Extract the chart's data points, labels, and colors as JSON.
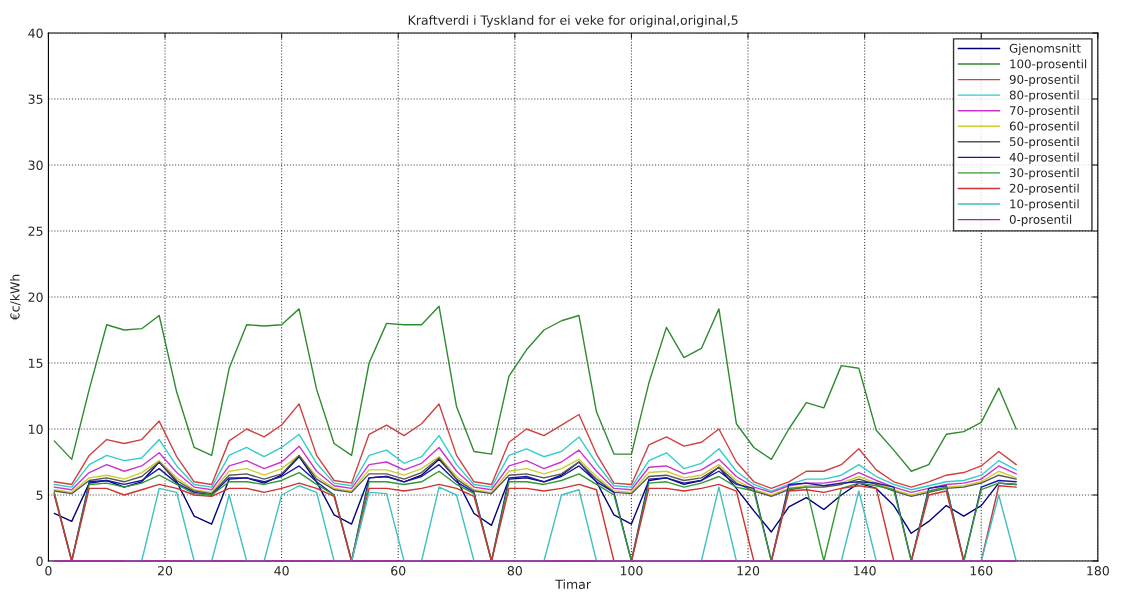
{
  "chart_data": {
    "type": "line",
    "title": "Kraftverdi i Tyskland for ei veke for original,original,5",
    "xlabel": "Timar",
    "ylabel": "€c/kWh",
    "x": [
      1,
      4,
      7,
      10,
      13,
      16,
      19,
      22,
      25,
      28,
      31,
      34,
      37,
      40,
      43,
      46,
      49,
      52,
      55,
      58,
      61,
      64,
      67,
      70,
      73,
      76,
      79,
      82,
      85,
      88,
      91,
      94,
      97,
      100,
      103,
      106,
      109,
      112,
      115,
      118,
      121,
      124,
      127,
      130,
      133,
      136,
      139,
      142,
      145,
      148,
      151,
      154,
      157,
      160,
      163,
      166
    ],
    "xlim": [
      0,
      180
    ],
    "xticks": [
      0,
      20,
      40,
      60,
      80,
      100,
      120,
      140,
      160,
      180
    ],
    "ylim": [
      0,
      40
    ],
    "yticks": [
      0,
      5,
      10,
      15,
      20,
      25,
      30,
      35,
      40
    ],
    "grid": true,
    "legend": "top right",
    "line_style": "solid",
    "marker": "none",
    "series": [
      {
        "name": "Gjenomsnitt",
        "color": "#00007f",
        "values": [
          3.6,
          3.0,
          5.9,
          6.1,
          5.6,
          6.0,
          7.5,
          6.0,
          3.4,
          2.8,
          6.2,
          6.3,
          5.9,
          6.5,
          7.9,
          6.0,
          3.5,
          2.8,
          6.3,
          6.4,
          6.0,
          6.5,
          7.7,
          6.2,
          3.6,
          2.7,
          6.2,
          6.3,
          6.0,
          6.5,
          7.5,
          6.0,
          3.5,
          2.8,
          6.1,
          6.3,
          5.8,
          6.1,
          7.1,
          5.5,
          3.8,
          2.2,
          4.1,
          4.8,
          3.9,
          5.0,
          5.9,
          5.5,
          4.2,
          2.1,
          3.0,
          4.2,
          3.4,
          4.2,
          5.9,
          5.8
        ]
      },
      {
        "name": "100-prosentil",
        "color": "#2e8b2e",
        "values": [
          9.1,
          7.7,
          13.0,
          17.9,
          17.5,
          17.6,
          18.6,
          12.8,
          8.6,
          8.0,
          14.6,
          17.9,
          17.8,
          17.9,
          19.1,
          13.0,
          8.9,
          8.0,
          15.0,
          18.0,
          17.9,
          17.9,
          19.3,
          11.7,
          8.3,
          8.1,
          14.0,
          16.0,
          17.5,
          18.2,
          18.6,
          11.3,
          8.1,
          8.1,
          13.5,
          17.7,
          15.4,
          16.1,
          19.1,
          10.4,
          8.6,
          7.7,
          10.0,
          12.0,
          11.6,
          14.8,
          14.6,
          9.9,
          8.4,
          6.8,
          7.3,
          9.6,
          9.8,
          10.5,
          13.1,
          10.0
        ]
      },
      {
        "name": "90-prosentil",
        "color": "#d04040",
        "values": [
          6.0,
          5.8,
          8.0,
          9.2,
          8.9,
          9.2,
          10.6,
          7.9,
          6.0,
          5.8,
          9.1,
          10.0,
          9.4,
          10.3,
          11.9,
          8.0,
          6.1,
          5.9,
          9.6,
          10.3,
          9.5,
          10.4,
          11.9,
          8.0,
          6.0,
          5.8,
          9.0,
          10.0,
          9.5,
          10.3,
          11.1,
          8.1,
          5.9,
          5.8,
          8.8,
          9.4,
          8.7,
          9.0,
          10.0,
          7.5,
          6.0,
          5.5,
          6.0,
          6.8,
          6.8,
          7.3,
          8.5,
          6.9,
          6.0,
          5.6,
          6.0,
          6.5,
          6.7,
          7.2,
          8.3,
          7.3
        ]
      },
      {
        "name": "80-prosentil",
        "color": "#33cccc",
        "values": [
          5.8,
          5.6,
          7.3,
          8.0,
          7.6,
          7.8,
          9.2,
          7.2,
          5.8,
          5.6,
          8.0,
          8.6,
          7.9,
          8.6,
          9.6,
          7.4,
          5.9,
          5.7,
          8.0,
          8.4,
          7.4,
          7.9,
          9.5,
          7.3,
          5.8,
          5.6,
          8.0,
          8.5,
          7.9,
          8.3,
          9.4,
          7.4,
          5.7,
          5.6,
          7.6,
          8.2,
          7.0,
          7.4,
          8.5,
          6.8,
          5.8,
          5.3,
          5.8,
          6.2,
          6.2,
          6.5,
          7.3,
          6.4,
          5.8,
          5.4,
          5.7,
          6.0,
          6.1,
          6.5,
          7.6,
          6.9
        ]
      },
      {
        "name": "70-prosentil",
        "color": "#cc33cc",
        "values": [
          5.6,
          5.4,
          6.7,
          7.3,
          6.8,
          7.2,
          8.2,
          6.7,
          5.6,
          5.4,
          7.2,
          7.6,
          7.0,
          7.5,
          8.7,
          6.8,
          5.7,
          5.5,
          7.3,
          7.5,
          6.9,
          7.4,
          8.6,
          6.8,
          5.6,
          5.4,
          7.2,
          7.6,
          7.0,
          7.5,
          8.4,
          6.8,
          5.5,
          5.4,
          7.1,
          7.2,
          6.6,
          6.9,
          7.7,
          6.4,
          5.6,
          5.2,
          5.7,
          5.9,
          5.9,
          6.1,
          6.7,
          6.1,
          5.6,
          5.2,
          5.5,
          5.8,
          5.9,
          6.2,
          7.2,
          6.6
        ]
      },
      {
        "name": "60-prosentil",
        "color": "#cccc33",
        "values": [
          5.4,
          5.2,
          6.3,
          6.5,
          6.2,
          6.7,
          7.6,
          6.3,
          5.4,
          5.2,
          6.8,
          7.0,
          6.5,
          7.0,
          8.0,
          6.4,
          5.5,
          5.3,
          6.9,
          6.9,
          6.5,
          7.0,
          7.9,
          6.4,
          5.4,
          5.2,
          6.8,
          7.0,
          6.6,
          7.0,
          7.7,
          6.4,
          5.3,
          5.2,
          6.7,
          6.8,
          6.3,
          6.5,
          7.3,
          6.1,
          5.4,
          5.0,
          5.5,
          5.7,
          5.7,
          5.9,
          6.4,
          5.9,
          5.4,
          5.0,
          5.3,
          5.6,
          5.7,
          6.0,
          6.8,
          6.3
        ]
      },
      {
        "name": "50-prosentil",
        "color": "#555555",
        "values": [
          5.3,
          5.1,
          6.1,
          6.3,
          6.0,
          6.4,
          7.5,
          6.1,
          5.3,
          5.1,
          6.5,
          6.6,
          6.2,
          6.6,
          8.0,
          6.2,
          5.4,
          5.2,
          6.6,
          6.6,
          6.2,
          6.7,
          7.8,
          6.2,
          5.3,
          5.1,
          6.5,
          6.6,
          6.3,
          6.6,
          7.5,
          6.2,
          5.2,
          5.1,
          6.4,
          6.5,
          6.1,
          6.3,
          7.1,
          5.9,
          5.3,
          4.9,
          5.4,
          5.6,
          5.6,
          5.8,
          6.2,
          5.8,
          5.3,
          4.9,
          5.2,
          5.5,
          5.6,
          5.9,
          6.5,
          6.2
        ]
      },
      {
        "name": "40-prosentil",
        "color": "#1a1aa6",
        "values": [
          5.1,
          0,
          6.0,
          6.1,
          5.8,
          6.1,
          7.0,
          5.9,
          5.2,
          5.0,
          6.3,
          6.3,
          6.0,
          6.4,
          7.2,
          6.0,
          5.0,
          0,
          6.3,
          6.4,
          6.0,
          6.4,
          7.3,
          6.0,
          5.2,
          0,
          6.3,
          6.4,
          6.0,
          6.4,
          7.2,
          6.0,
          5.2,
          0,
          6.2,
          6.3,
          5.9,
          6.1,
          6.8,
          5.8,
          5.5,
          0,
          5.8,
          5.9,
          5.7,
          5.9,
          6.0,
          5.9,
          5.6,
          0,
          5.5,
          5.7,
          0,
          5.6,
          6.1,
          6.0
        ]
      },
      {
        "name": "30-prosentil",
        "color": "#339933",
        "values": [
          5.2,
          0,
          5.8,
          5.9,
          5.6,
          5.9,
          6.5,
          5.8,
          5.1,
          5.0,
          6.0,
          6.0,
          5.8,
          6.1,
          6.7,
          5.8,
          5.0,
          0,
          6.0,
          6.0,
          5.8,
          6.0,
          6.8,
          5.8,
          5.1,
          0,
          6.0,
          6.0,
          5.8,
          6.1,
          6.6,
          5.8,
          5.0,
          0,
          5.9,
          6.0,
          5.6,
          5.9,
          6.4,
          5.6,
          5.3,
          0,
          5.5,
          5.6,
          0,
          5.5,
          5.9,
          5.7,
          5.4,
          0,
          5.3,
          5.6,
          0,
          5.4,
          5.9,
          5.8
        ]
      },
      {
        "name": "20-prosentil",
        "color": "#cc3333",
        "values": [
          5.0,
          0,
          5.5,
          5.5,
          5.0,
          5.4,
          5.8,
          5.5,
          5.0,
          4.9,
          5.5,
          5.5,
          5.2,
          5.5,
          5.9,
          5.5,
          4.9,
          0,
          5.5,
          5.5,
          5.3,
          5.5,
          5.8,
          5.5,
          4.9,
          0,
          5.5,
          5.5,
          5.3,
          5.5,
          5.8,
          5.4,
          0,
          0,
          5.5,
          5.5,
          5.3,
          5.5,
          5.8,
          5.3,
          0,
          0,
          5.3,
          5.4,
          5.2,
          5.5,
          5.7,
          5.5,
          0,
          0,
          5.0,
          5.3,
          0,
          0,
          5.7,
          5.6
        ]
      },
      {
        "name": "10-prosentil",
        "color": "#40c0c0",
        "values": [
          null,
          null,
          null,
          null,
          0,
          0,
          5.5,
          5.2,
          0,
          0,
          5.0,
          0,
          0,
          5.0,
          5.7,
          5.2,
          0,
          0,
          5.2,
          5.1,
          0,
          0,
          5.6,
          5.0,
          0,
          0,
          0,
          0,
          0,
          5.0,
          5.4,
          0,
          0,
          0,
          0,
          0,
          0,
          0,
          5.6,
          0,
          0,
          0,
          0,
          0,
          0,
          0,
          5.3,
          0,
          0,
          0,
          0,
          0,
          0,
          0,
          5.0,
          0
        ]
      },
      {
        "name": "0-prosentil",
        "color": "#aa22aa",
        "values": [
          0,
          0,
          0,
          0,
          0,
          0,
          0,
          0,
          0,
          0,
          0,
          0,
          0,
          0,
          0,
          0,
          0,
          0,
          0,
          0,
          0,
          0,
          0,
          0,
          0,
          0,
          0,
          0,
          0,
          0,
          0,
          0,
          0,
          0,
          0,
          0,
          0,
          0,
          0,
          0,
          0,
          0,
          0,
          0,
          0,
          0,
          0,
          0,
          0,
          0,
          0,
          0,
          0,
          0,
          0,
          0
        ]
      }
    ]
  }
}
